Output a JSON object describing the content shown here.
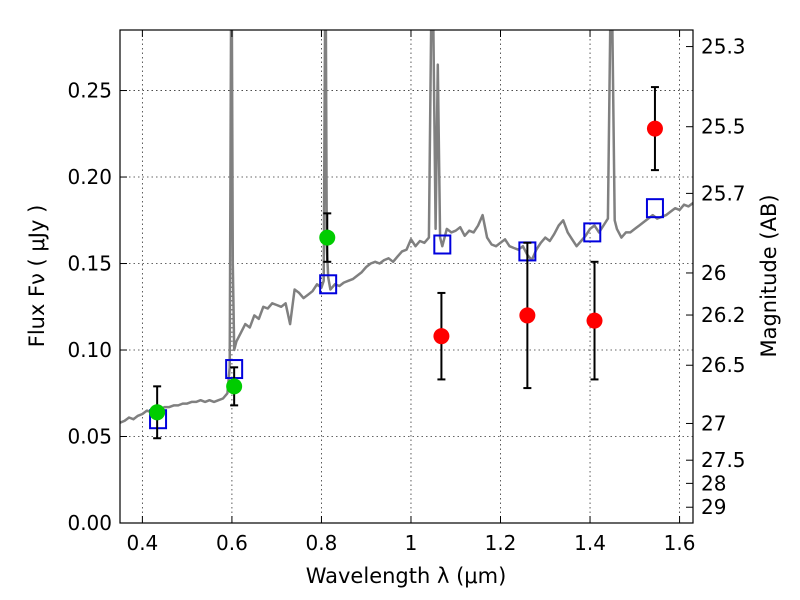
{
  "chart_data": {
    "type": "scatter",
    "xlabel": "Wavelength  λ (μm)",
    "ylabel": "Flux  Fν  ( μJy )",
    "y2label": "Magnitude (AB)",
    "xlim": [
      0.35,
      1.63
    ],
    "ylim": [
      0.0,
      0.285
    ],
    "x_ticks": [
      {
        "value": 0.4,
        "label": "0.4"
      },
      {
        "value": 0.6,
        "label": "0.6"
      },
      {
        "value": 0.8,
        "label": "0.8"
      },
      {
        "value": 1.0,
        "label": "1"
      },
      {
        "value": 1.2,
        "label": "1.2"
      },
      {
        "value": 1.4,
        "label": "1.4"
      },
      {
        "value": 1.6,
        "label": "1.6"
      }
    ],
    "y_ticks": [
      {
        "value": 0.0,
        "label": "0.00"
      },
      {
        "value": 0.05,
        "label": "0.05"
      },
      {
        "value": 0.1,
        "label": "0.10"
      },
      {
        "value": 0.15,
        "label": "0.15"
      },
      {
        "value": 0.2,
        "label": "0.20"
      },
      {
        "value": 0.25,
        "label": "0.25"
      }
    ],
    "y2_ticks": [
      {
        "value": 25.3,
        "label": "25.3"
      },
      {
        "value": 25.5,
        "label": "25.5"
      },
      {
        "value": 25.7,
        "label": "25.7"
      },
      {
        "value": 26.0,
        "label": "26"
      },
      {
        "value": 26.2,
        "label": "26.2"
      },
      {
        "value": 26.5,
        "label": "26.5"
      },
      {
        "value": 27.0,
        "label": "27"
      },
      {
        "value": 27.5,
        "label": "27.5"
      },
      {
        "value": 28.0,
        "label": "28"
      },
      {
        "value": 29.0,
        "label": "29"
      }
    ],
    "grid": true,
    "series": [
      {
        "kind": "line",
        "color": "#808080",
        "x": [
          0.35,
          0.36,
          0.37,
          0.38,
          0.39,
          0.4,
          0.41,
          0.42,
          0.43,
          0.44,
          0.45,
          0.46,
          0.47,
          0.48,
          0.49,
          0.5,
          0.51,
          0.52,
          0.53,
          0.54,
          0.55,
          0.56,
          0.57,
          0.58,
          0.59,
          0.595,
          0.598,
          0.6,
          0.602,
          0.605,
          0.61,
          0.62,
          0.63,
          0.64,
          0.65,
          0.66,
          0.67,
          0.68,
          0.69,
          0.7,
          0.71,
          0.72,
          0.73,
          0.74,
          0.75,
          0.76,
          0.77,
          0.78,
          0.79,
          0.8,
          0.805,
          0.808,
          0.81,
          0.812,
          0.815,
          0.82,
          0.83,
          0.84,
          0.85,
          0.86,
          0.87,
          0.88,
          0.89,
          0.9,
          0.91,
          0.92,
          0.93,
          0.94,
          0.95,
          0.96,
          0.97,
          0.98,
          0.99,
          1.0,
          1.01,
          1.02,
          1.03,
          1.04,
          1.045,
          1.05,
          1.055,
          1.06,
          1.065,
          1.07,
          1.08,
          1.09,
          1.1,
          1.11,
          1.12,
          1.13,
          1.14,
          1.15,
          1.16,
          1.17,
          1.18,
          1.19,
          1.2,
          1.21,
          1.22,
          1.23,
          1.24,
          1.25,
          1.26,
          1.27,
          1.28,
          1.29,
          1.3,
          1.31,
          1.32,
          1.33,
          1.34,
          1.35,
          1.36,
          1.37,
          1.38,
          1.39,
          1.4,
          1.41,
          1.42,
          1.43,
          1.44,
          1.445,
          1.45,
          1.455,
          1.46,
          1.47,
          1.48,
          1.49,
          1.5,
          1.51,
          1.52,
          1.53,
          1.54,
          1.55,
          1.56,
          1.57,
          1.58,
          1.59,
          1.6,
          1.61,
          1.62,
          1.63
        ],
        "y": [
          0.058,
          0.059,
          0.061,
          0.06,
          0.062,
          0.063,
          0.065,
          0.064,
          0.066,
          0.066,
          0.067,
          0.067,
          0.068,
          0.068,
          0.069,
          0.069,
          0.07,
          0.07,
          0.071,
          0.07,
          0.071,
          0.07,
          0.071,
          0.072,
          0.075,
          0.09,
          0.285,
          0.285,
          0.15,
          0.1,
          0.105,
          0.11,
          0.115,
          0.113,
          0.12,
          0.118,
          0.125,
          0.124,
          0.127,
          0.126,
          0.125,
          0.127,
          0.115,
          0.135,
          0.133,
          0.13,
          0.132,
          0.134,
          0.138,
          0.136,
          0.14,
          0.285,
          0.285,
          0.16,
          0.142,
          0.135,
          0.138,
          0.137,
          0.139,
          0.14,
          0.141,
          0.143,
          0.145,
          0.148,
          0.15,
          0.151,
          0.15,
          0.152,
          0.153,
          0.151,
          0.154,
          0.157,
          0.158,
          0.164,
          0.16,
          0.163,
          0.162,
          0.165,
          0.285,
          0.285,
          0.17,
          0.265,
          0.165,
          0.16,
          0.17,
          0.168,
          0.169,
          0.171,
          0.166,
          0.169,
          0.168,
          0.172,
          0.178,
          0.165,
          0.161,
          0.16,
          0.162,
          0.164,
          0.16,
          0.159,
          0.158,
          0.16,
          0.155,
          0.152,
          0.158,
          0.162,
          0.165,
          0.163,
          0.167,
          0.172,
          0.175,
          0.168,
          0.164,
          0.16,
          0.163,
          0.166,
          0.17,
          0.172,
          0.168,
          0.172,
          0.176,
          0.285,
          0.285,
          0.175,
          0.17,
          0.165,
          0.168,
          0.168,
          0.17,
          0.172,
          0.174,
          0.176,
          0.178,
          0.176,
          0.177,
          0.178,
          0.18,
          0.182,
          0.181,
          0.184,
          0.183,
          0.185
        ]
      },
      {
        "kind": "boxes",
        "color": "#0000dd",
        "x": [
          0.435,
          0.605,
          0.815,
          1.07,
          1.26,
          1.405,
          1.545
        ],
        "y": [
          0.06,
          0.089,
          0.138,
          0.161,
          0.157,
          0.168,
          0.182
        ]
      },
      {
        "kind": "points",
        "color": "#00cc00",
        "x": [
          0.433,
          0.605,
          0.813
        ],
        "y": [
          0.064,
          0.079,
          0.165
        ],
        "err": [
          0.015,
          0.011,
          0.014
        ]
      },
      {
        "kind": "points",
        "color": "#ff0000",
        "x": [
          1.068,
          1.26,
          1.41,
          1.545
        ],
        "y": [
          0.108,
          0.12,
          0.117,
          0.228
        ],
        "err": [
          0.025,
          0.042,
          0.034,
          0.024
        ]
      }
    ]
  }
}
